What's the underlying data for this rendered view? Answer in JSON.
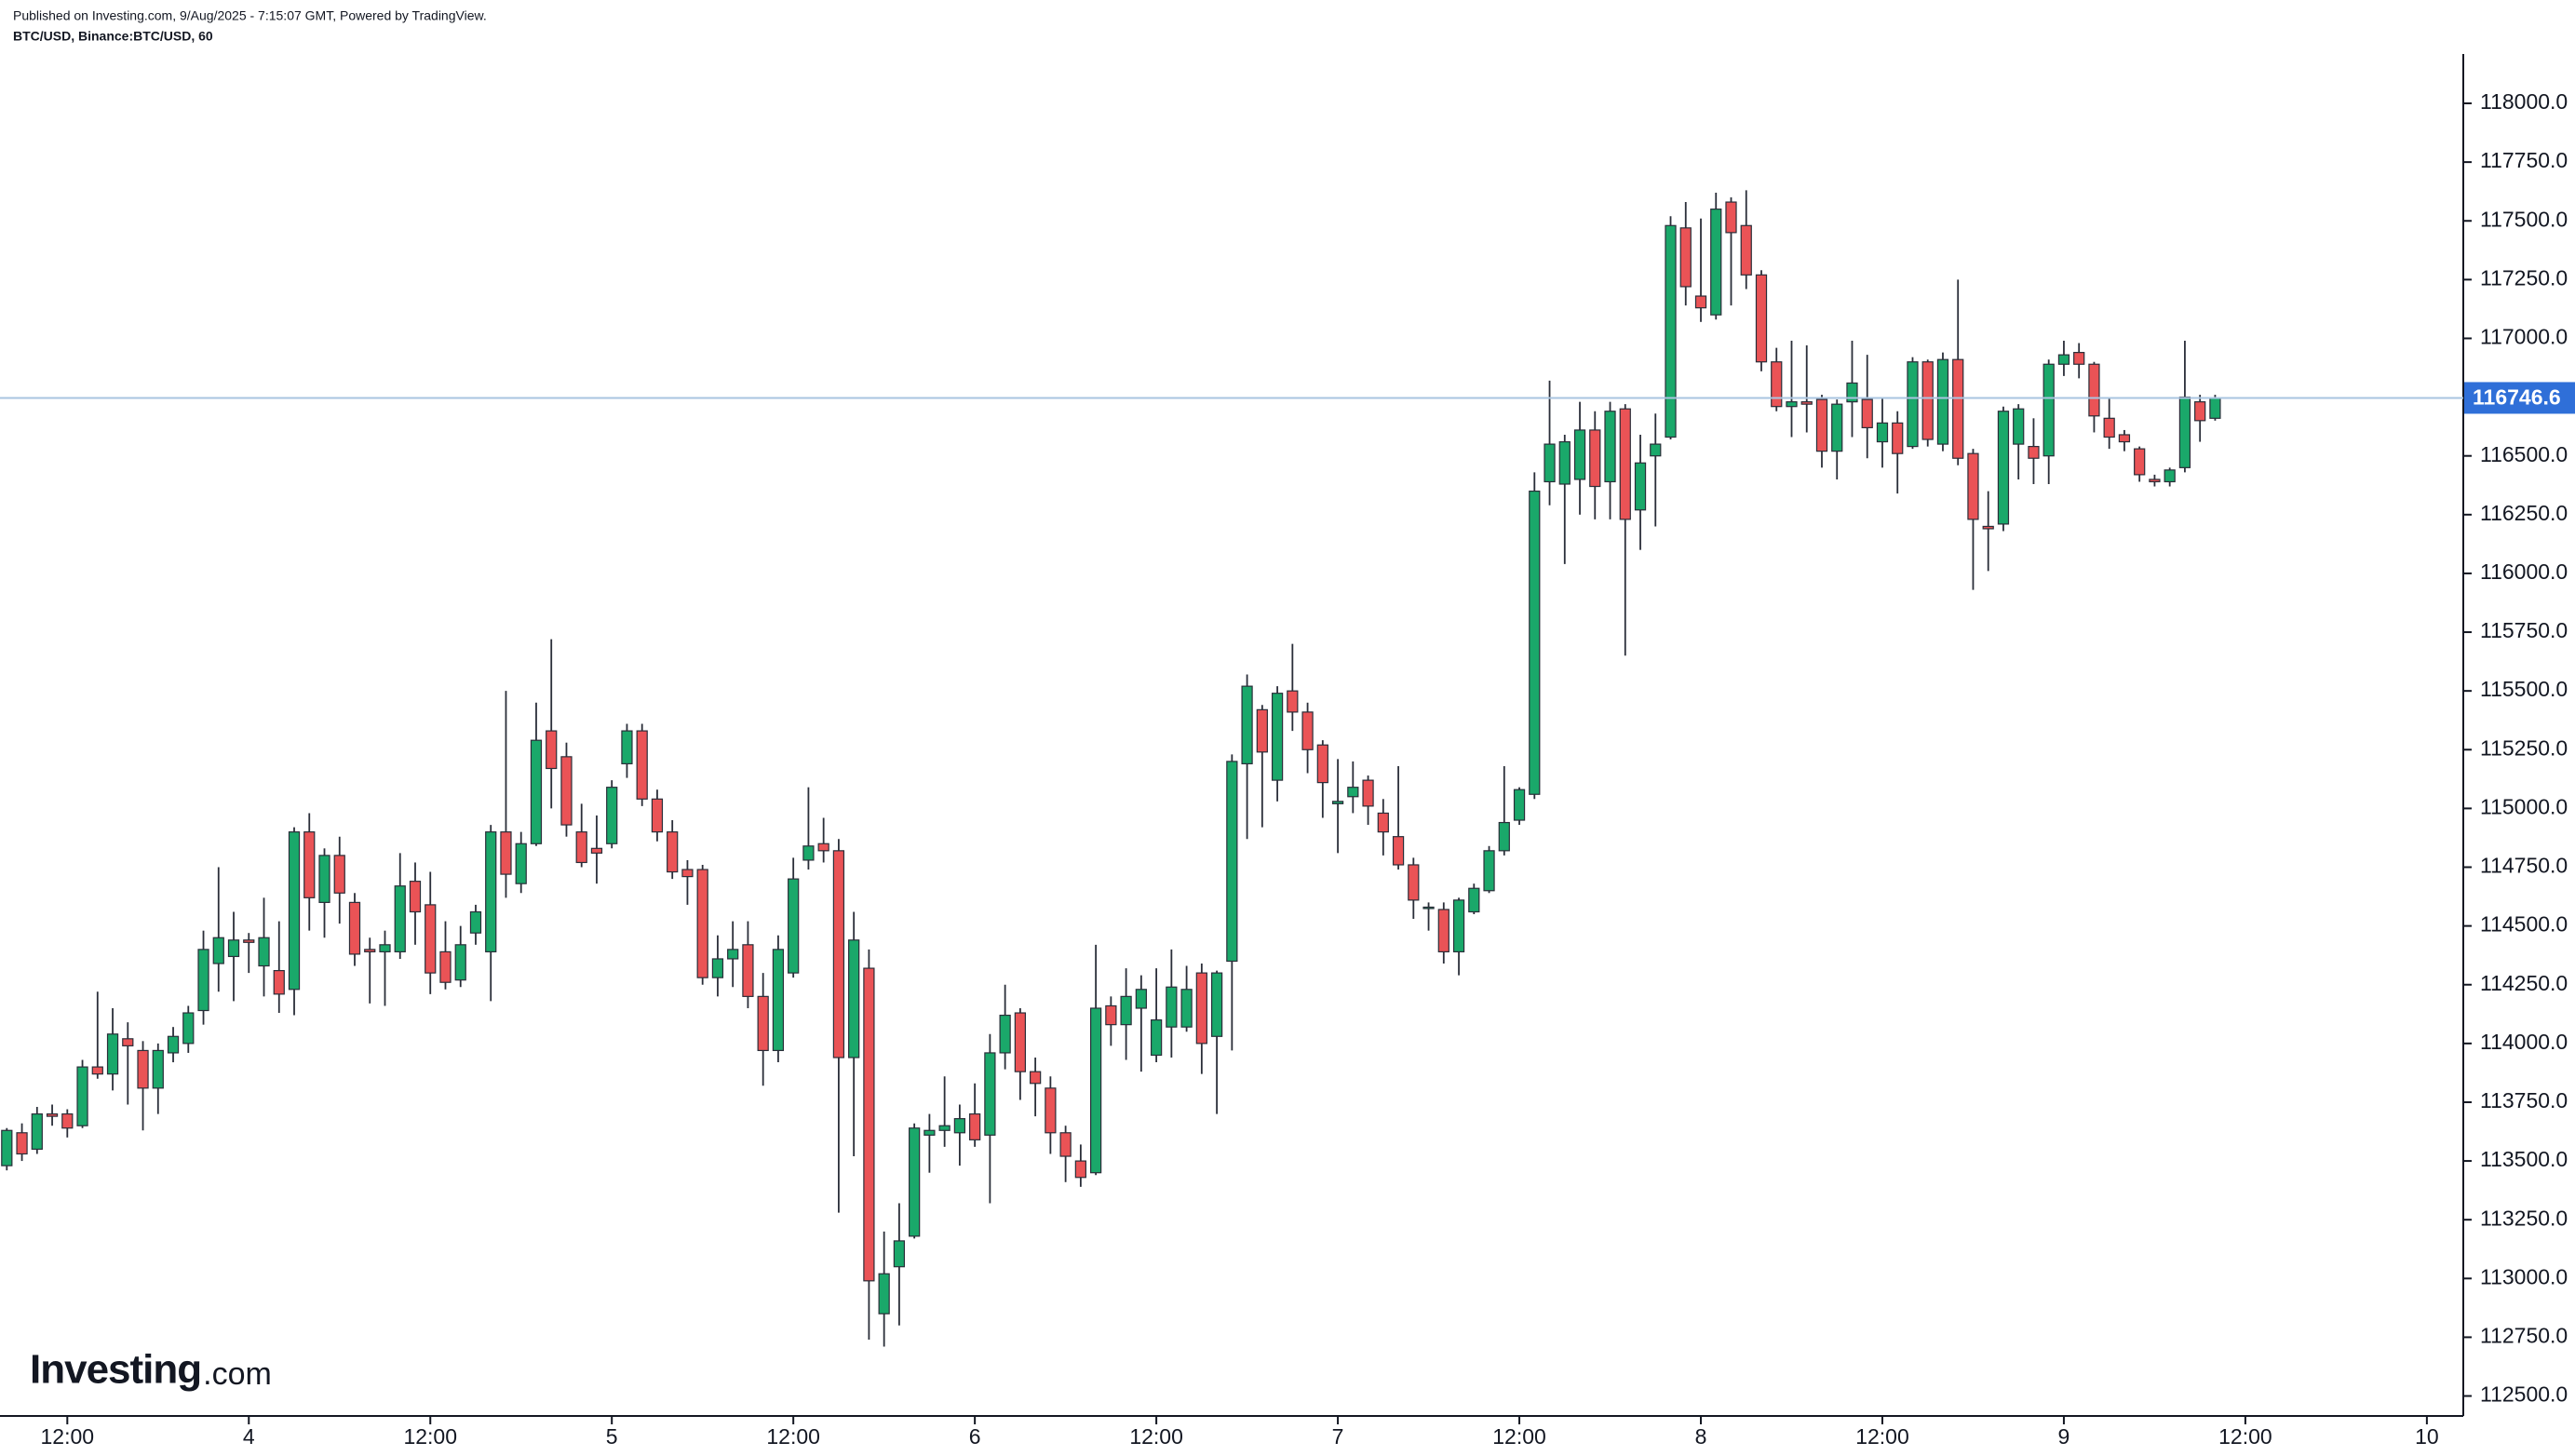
{
  "header": {
    "published": "Published on Investing.com, 9/Aug/2025 - 7:15:07 GMT, Powered by TradingView.",
    "symbol": "BTC/USD, Binance:BTC/USD, 60"
  },
  "logo": {
    "name": "Investing",
    "suffix": ".com"
  },
  "chart_data": {
    "type": "candlestick",
    "up_color": "#1aa86a",
    "down_color": "#ea5356",
    "price_line_color": "#a9c4e0",
    "price_label_color": "#2f6fd8",
    "x": [
      8,
      9,
      10,
      11,
      12,
      13,
      14,
      15,
      16,
      17,
      18,
      19,
      20,
      21,
      22,
      23,
      24,
      25,
      26,
      27,
      28,
      29,
      30,
      31,
      32,
      33,
      34,
      35,
      36,
      37,
      38,
      39,
      40,
      41,
      42,
      43,
      44,
      45,
      46,
      47,
      48,
      49,
      50,
      51,
      52,
      53,
      54,
      55,
      56,
      57,
      58,
      59,
      60,
      61,
      62,
      63,
      64,
      65,
      66,
      67,
      68,
      69,
      70,
      71,
      72,
      73,
      74,
      75,
      76,
      77,
      78,
      79,
      80,
      81,
      82,
      83,
      84,
      85,
      86,
      87,
      88,
      89,
      90,
      91,
      92,
      93,
      94,
      95,
      96,
      97,
      98,
      99,
      100,
      101,
      102,
      103,
      104,
      105,
      106,
      107,
      108,
      109,
      110,
      111,
      112,
      113,
      114,
      115,
      116,
      117,
      118,
      119,
      120,
      121,
      122,
      123,
      124,
      125,
      126,
      127,
      128,
      129,
      130,
      131,
      132,
      133,
      134,
      135,
      136,
      137,
      138,
      139,
      140,
      141,
      142,
      143,
      144,
      145,
      146,
      147,
      148,
      149,
      150,
      151,
      152,
      153,
      154
    ],
    "open": [
      113480,
      113620,
      113550,
      113700,
      113700,
      113650,
      113900,
      113870,
      114020,
      113970,
      113810,
      113960,
      114000,
      114140,
      114340,
      114370,
      114440,
      114330,
      114310,
      114230,
      114900,
      114600,
      114800,
      114600,
      114400,
      114390,
      114390,
      114690,
      114590,
      114390,
      114270,
      114470,
      114390,
      114900,
      114680,
      114850,
      115330,
      115220,
      114900,
      114830,
      114850,
      115190,
      115330,
      115040,
      114900,
      114740,
      114740,
      114280,
      114360,
      114420,
      114200,
      113970,
      114300,
      114780,
      114850,
      114820,
      113940,
      114320,
      112850,
      113050,
      113180,
      113610,
      113630,
      113620,
      113700,
      113610,
      113960,
      114130,
      113880,
      113810,
      113620,
      113500,
      113450,
      114160,
      114080,
      114150,
      113950,
      114070,
      114070,
      114300,
      114030,
      114350,
      115190,
      115420,
      115120,
      115500,
      115410,
      115270,
      115020,
      115050,
      115120,
      114980,
      114880,
      114760,
      114580,
      114570,
      114390,
      114560,
      114650,
      114820,
      114950,
      115060,
      116390,
      116380,
      116400,
      116610,
      116390,
      116700,
      116270,
      116500,
      116580,
      117470,
      117180,
      117100,
      117580,
      117480,
      117270,
      116900,
      116710,
      116730,
      116740,
      116520,
      116730,
      116740,
      116560,
      116640,
      116540,
      116900,
      116550,
      116910,
      116510,
      116200,
      116210,
      116550,
      116540,
      116500,
      116890,
      116940,
      116890,
      116660,
      116590,
      116530,
      116400,
      116390,
      116450,
      116730,
      116660
    ],
    "high": [
      113640,
      113660,
      113730,
      113740,
      113720,
      113930,
      114220,
      114150,
      114090,
      114010,
      114000,
      114070,
      114160,
      114480,
      114750,
      114560,
      114470,
      114620,
      114520,
      114920,
      114980,
      114830,
      114880,
      114640,
      114450,
      114480,
      114810,
      114770,
      114730,
      114520,
      114500,
      114590,
      114930,
      115500,
      114900,
      115450,
      115720,
      115280,
      115020,
      114970,
      115120,
      115360,
      115360,
      115080,
      114950,
      114780,
      114760,
      114460,
      114520,
      114520,
      114300,
      114460,
      114790,
      115090,
      114960,
      114870,
      114560,
      114400,
      113200,
      113320,
      113660,
      113700,
      113860,
      113740,
      113830,
      114040,
      114250,
      114150,
      113940,
      113860,
      113650,
      113570,
      114420,
      114200,
      114320,
      114290,
      114320,
      114400,
      114330,
      114340,
      114310,
      115230,
      115570,
      115440,
      115520,
      115700,
      115450,
      115290,
      115210,
      115200,
      115140,
      115040,
      115180,
      114790,
      114600,
      114600,
      114620,
      114680,
      114840,
      115180,
      115090,
      116430,
      116820,
      116590,
      116730,
      116690,
      116730,
      116720,
      116590,
      116680,
      117520,
      117580,
      117510,
      117620,
      117600,
      117630,
      117290,
      116960,
      116990,
      116970,
      116760,
      116740,
      116990,
      116930,
      116750,
      116690,
      116920,
      116910,
      116940,
      117250,
      116530,
      116350,
      116710,
      116720,
      116660,
      116910,
      116990,
      116980,
      116900,
      116750,
      116610,
      116540,
      116420,
      116450,
      116990,
      116760,
      116760
    ],
    "low": [
      113460,
      113500,
      113530,
      113650,
      113600,
      113640,
      113850,
      113800,
      113740,
      113630,
      113700,
      113920,
      113960,
      114080,
      114220,
      114180,
      114300,
      114200,
      114130,
      114120,
      114480,
      114450,
      114510,
      114330,
      114170,
      114160,
      114360,
      114420,
      114210,
      114230,
      114240,
      114420,
      114180,
      114620,
      114640,
      114840,
      115000,
      114880,
      114750,
      114680,
      114830,
      115130,
      115010,
      114860,
      114700,
      114590,
      114250,
      114200,
      114240,
      114150,
      113820,
      113920,
      114280,
      114740,
      114770,
      113280,
      113520,
      112740,
      112710,
      112800,
      113170,
      113450,
      113560,
      113480,
      113560,
      113320,
      113890,
      113760,
      113690,
      113530,
      113410,
      113390,
      113440,
      113990,
      113930,
      113880,
      113920,
      113940,
      114050,
      113870,
      113700,
      113970,
      114870,
      114920,
      115030,
      115330,
      115150,
      114960,
      114810,
      114980,
      114930,
      114800,
      114740,
      114530,
      114480,
      114340,
      114290,
      114550,
      114640,
      114800,
      114930,
      115040,
      116290,
      116040,
      116250,
      116230,
      116230,
      115650,
      116100,
      116200,
      116570,
      117140,
      117070,
      117080,
      117140,
      117210,
      116860,
      116690,
      116580,
      116600,
      116450,
      116400,
      116580,
      116490,
      116450,
      116340,
      116530,
      116540,
      116520,
      116460,
      115930,
      116010,
      116180,
      116400,
      116380,
      116380,
      116840,
      116830,
      116600,
      116530,
      116520,
      116390,
      116370,
      116370,
      116430,
      116560,
      116650
    ],
    "close": [
      113630,
      113530,
      113700,
      113690,
      113640,
      113900,
      113870,
      114040,
      113990,
      113810,
      113970,
      114030,
      114130,
      114400,
      114450,
      114440,
      114430,
      114450,
      114210,
      114900,
      114620,
      114800,
      114640,
      114380,
      114390,
      114420,
      114670,
      114560,
      114300,
      114260,
      114420,
      114560,
      114900,
      114720,
      114850,
      115290,
      115170,
      114930,
      114770,
      114810,
      115090,
      115330,
      115040,
      114900,
      114730,
      114710,
      114280,
      114360,
      114400,
      114200,
      113970,
      114400,
      114700,
      114840,
      114820,
      113940,
      114440,
      112990,
      113020,
      113160,
      113640,
      113630,
      113650,
      113680,
      113590,
      113960,
      114120,
      113880,
      113830,
      113620,
      113520,
      113430,
      114150,
      114080,
      114200,
      114230,
      114100,
      114240,
      114230,
      114000,
      114300,
      115200,
      115520,
      115240,
      115490,
      115410,
      115250,
      115110,
      115030,
      115090,
      115010,
      114900,
      114760,
      114610,
      114580,
      114390,
      114610,
      114660,
      114820,
      114940,
      115080,
      116350,
      116550,
      116560,
      116610,
      116370,
      116690,
      116230,
      116470,
      116550,
      117480,
      117220,
      117130,
      117550,
      117450,
      117270,
      116900,
      116710,
      116730,
      116720,
      116520,
      116720,
      116810,
      116620,
      116640,
      116510,
      116900,
      116570,
      116910,
      116490,
      116230,
      116190,
      116690,
      116700,
      116490,
      116890,
      116930,
      116890,
      116670,
      116580,
      116560,
      116420,
      116390,
      116440,
      116750,
      116650,
      116746.6
    ],
    "last_price": 116746.6,
    "xlim": [
      7.55,
      170.1
    ],
    "xticks": [
      {
        "value": 12,
        "label": "12:00"
      },
      {
        "value": 24,
        "label": "4"
      },
      {
        "value": 36,
        "label": "12:00"
      },
      {
        "value": 48,
        "label": "5"
      },
      {
        "value": 60,
        "label": "12:00"
      },
      {
        "value": 72,
        "label": "6"
      },
      {
        "value": 84,
        "label": "12:00"
      },
      {
        "value": 96,
        "label": "7"
      },
      {
        "value": 108,
        "label": "12:00"
      },
      {
        "value": 120,
        "label": "8"
      },
      {
        "value": 132,
        "label": "12:00"
      },
      {
        "value": 144,
        "label": "9"
      },
      {
        "value": 156,
        "label": "12:00"
      },
      {
        "value": 168,
        "label": "10"
      }
    ],
    "ylim": [
      112415,
      118210
    ],
    "yticks": [
      {
        "value": 112500,
        "label": "112500.0"
      },
      {
        "value": 112750,
        "label": "112750.0"
      },
      {
        "value": 113000,
        "label": "113000.0"
      },
      {
        "value": 113250,
        "label": "113250.0"
      },
      {
        "value": 113500,
        "label": "113500.0"
      },
      {
        "value": 113750,
        "label": "113750.0"
      },
      {
        "value": 114000,
        "label": "114000.0"
      },
      {
        "value": 114250,
        "label": "114250.0"
      },
      {
        "value": 114500,
        "label": "114500.0"
      },
      {
        "value": 114750,
        "label": "114750.0"
      },
      {
        "value": 115000,
        "label": "115000.0"
      },
      {
        "value": 115250,
        "label": "115250.0"
      },
      {
        "value": 115500,
        "label": "115500.0"
      },
      {
        "value": 115750,
        "label": "115750.0"
      },
      {
        "value": 116000,
        "label": "116000.0"
      },
      {
        "value": 116250,
        "label": "116250.0"
      },
      {
        "value": 116500,
        "label": "116500.0"
      },
      {
        "value": 116750,
        "label": "116750.0"
      },
      {
        "value": 117000,
        "label": "117000.0"
      },
      {
        "value": 117250,
        "label": "117250.0"
      },
      {
        "value": 117500,
        "label": "117500.0"
      },
      {
        "value": 117750,
        "label": "117750.0"
      },
      {
        "value": 118000,
        "label": "118000.0"
      }
    ],
    "grid": false
  }
}
